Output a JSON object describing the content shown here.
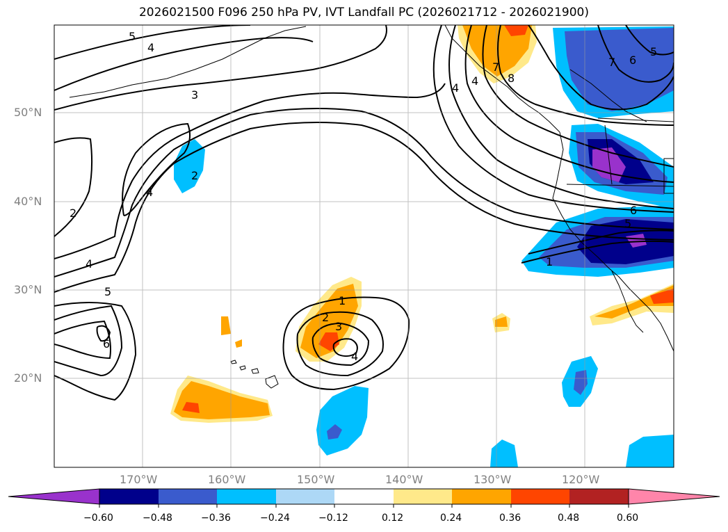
{
  "title": "2026021500 F096 250 hPa PV, IVT Landfall PC (2026021712 - 2026021900)",
  "lat_labels": [
    "50°N",
    "40°N",
    "30°N",
    "20°N"
  ],
  "lon_labels": [
    "170°W",
    "160°W",
    "150°W",
    "140°W",
    "130°W",
    "120°W"
  ],
  "colorbar": {
    "ticks": [
      "−0.60",
      "−0.48",
      "−0.36",
      "−0.24",
      "−0.12",
      "0.12",
      "0.24",
      "0.36",
      "0.48",
      "0.60"
    ],
    "colors": [
      "#9932cc",
      "#00008b",
      "#3a5bcd",
      "#00bfff",
      "#add8f6",
      "#ffffff",
      "#ffe98a",
      "#ffa500",
      "#ff4500",
      "#b22222",
      "#ff85aa"
    ]
  },
  "contour_labels": [
    "5",
    "4",
    "3",
    "2",
    "2",
    "4",
    "4",
    "5",
    "6",
    "1",
    "2",
    "3",
    "4",
    "4",
    "4",
    "7",
    "8",
    "7",
    "6",
    "5",
    "6",
    "5",
    "1"
  ],
  "palette": {
    "purple": "#9932cc",
    "navy": "#00008b",
    "royal": "#3a5bcd",
    "sky": "#00bfff",
    "pale_blue": "#add8f6",
    "yellow": "#ffe98a",
    "orange": "#ffa500",
    "red_orange": "#ff4500"
  }
}
